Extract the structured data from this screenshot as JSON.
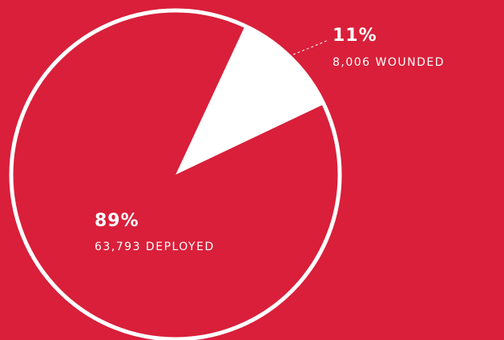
{
  "chart_data": {
    "type": "pie",
    "categories": [
      "8,006 WOUNDED",
      "63,793 DEPLOYED"
    ],
    "values": [
      11,
      89
    ],
    "value_labels": [
      "11%",
      "89%"
    ],
    "colors": [
      "#ffffff",
      "#d91f3a"
    ]
  }
}
